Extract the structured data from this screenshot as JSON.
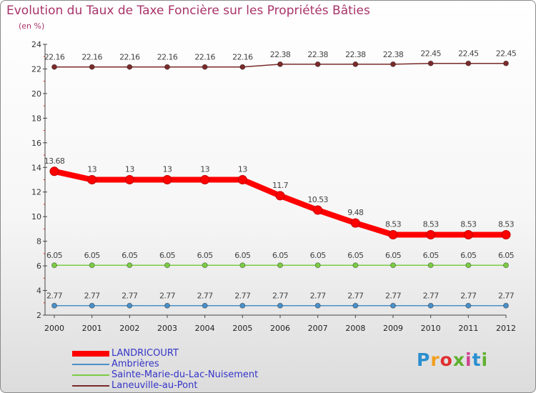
{
  "title": "Evolution du Taux de Taxe Foncière sur les Propriétés Bâties",
  "subtitle": "(en %)",
  "logo": {
    "text": "Proxiti",
    "letter_colors": [
      "#2a8fd0",
      "#f0a020",
      "#e03030",
      "#60b030",
      "#d04090",
      "#2a8fd0",
      "#60b030"
    ]
  },
  "chart_data": {
    "type": "line",
    "x": [
      "2000",
      "2001",
      "2002",
      "2003",
      "2004",
      "2005",
      "2006",
      "2007",
      "2008",
      "2009",
      "2010",
      "2011",
      "2012"
    ],
    "ylim": [
      2,
      24
    ],
    "yticks": [
      2,
      4,
      6,
      8,
      10,
      12,
      14,
      16,
      18,
      20,
      22,
      24
    ],
    "grid": false,
    "legend_position": "bottom-left",
    "series": [
      {
        "name": "LANDRICOURT",
        "color": "#ff0000",
        "values": [
          13.68,
          13,
          13,
          13,
          13,
          13,
          11.7,
          10.53,
          9.48,
          8.53,
          8.53,
          8.53,
          8.53
        ],
        "labels": [
          "13.68",
          "13",
          "13",
          "13",
          "13",
          "13",
          "11.7",
          "10.53",
          "9.48",
          "8.53",
          "8.53",
          "8.53",
          "8.53"
        ]
      },
      {
        "name": "Ambrières",
        "color": "#4a90c8",
        "values": [
          2.77,
          2.77,
          2.77,
          2.77,
          2.77,
          2.77,
          2.77,
          2.77,
          2.77,
          2.77,
          2.77,
          2.77,
          2.77
        ],
        "labels": [
          "2.77",
          "2.77",
          "2.77",
          "2.77",
          "2.77",
          "2.77",
          "2.77",
          "2.77",
          "2.77",
          "2.77",
          "2.77",
          "2.77",
          "2.77"
        ]
      },
      {
        "name": "Sainte-Marie-du-Lac-Nuisement",
        "color": "#7ccc44",
        "values": [
          6.05,
          6.05,
          6.05,
          6.05,
          6.05,
          6.05,
          6.05,
          6.05,
          6.05,
          6.05,
          6.05,
          6.05,
          6.05
        ],
        "labels": [
          "6.05",
          "6.05",
          "6.05",
          "6.05",
          "6.05",
          "6.05",
          "6.05",
          "6.05",
          "6.05",
          "6.05",
          "6.05",
          "6.05",
          "6.05"
        ]
      },
      {
        "name": "Laneuville-au-Pont",
        "color": "#7a2a2a",
        "values": [
          22.16,
          22.16,
          22.16,
          22.16,
          22.16,
          22.16,
          22.38,
          22.38,
          22.38,
          22.38,
          22.45,
          22.45,
          22.45
        ],
        "labels": [
          "22.16",
          "22.16",
          "22.16",
          "22.16",
          "22.16",
          "22.16",
          "22.38",
          "22.38",
          "22.38",
          "22.38",
          "22.45",
          "22.45",
          "22.45"
        ]
      }
    ]
  }
}
